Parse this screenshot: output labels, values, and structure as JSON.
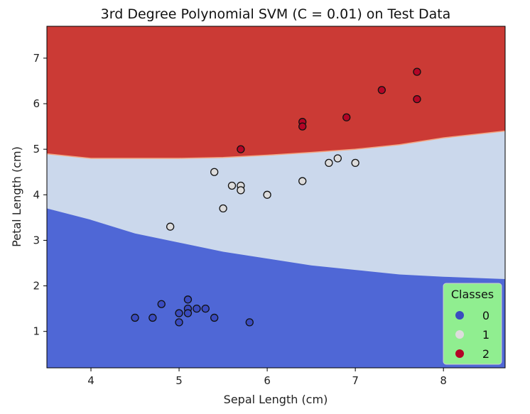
{
  "chart_data": {
    "type": "scatter",
    "title": "3rd Degree Polynomial SVM (C = 0.01) on Test Data",
    "xlabel": "Sepal Length (cm)",
    "ylabel": "Petal Length (cm)",
    "xlim": [
      3.5,
      8.7
    ],
    "ylim": [
      0.2,
      7.7
    ],
    "xticks": [
      4,
      5,
      6,
      7,
      8
    ],
    "yticks": [
      1,
      2,
      3,
      4,
      5,
      6,
      7
    ],
    "grid": false,
    "regions": [
      {
        "class": "0",
        "color": "#4f67d6"
      },
      {
        "class": "1",
        "color": "#cbd8ec"
      },
      {
        "class": "2",
        "color": "#cb3a35"
      }
    ],
    "boundaries": {
      "lower": {
        "x": [
          3.5,
          4.0,
          4.5,
          5.0,
          5.5,
          6.0,
          6.5,
          7.0,
          7.5,
          8.0,
          8.7
        ],
        "y": [
          3.7,
          3.45,
          3.15,
          2.95,
          2.75,
          2.6,
          2.45,
          2.35,
          2.25,
          2.2,
          2.15
        ]
      },
      "upper": {
        "x": [
          3.5,
          4.0,
          4.5,
          5.0,
          5.5,
          6.0,
          6.5,
          7.0,
          7.5,
          8.0,
          8.7
        ],
        "y": [
          4.9,
          4.8,
          4.8,
          4.8,
          4.82,
          4.87,
          4.93,
          5.0,
          5.1,
          5.25,
          5.4
        ]
      }
    },
    "series": [
      {
        "name": "0",
        "color": "#3b4cc0",
        "points": [
          [
            4.5,
            1.3
          ],
          [
            4.7,
            1.3
          ],
          [
            4.8,
            1.6
          ],
          [
            5.0,
            1.4
          ],
          [
            5.0,
            1.2
          ],
          [
            5.1,
            1.7
          ],
          [
            5.1,
            1.5
          ],
          [
            5.1,
            1.4
          ],
          [
            5.2,
            1.5
          ],
          [
            5.3,
            1.5
          ],
          [
            5.4,
            1.3
          ],
          [
            5.8,
            1.2
          ]
        ]
      },
      {
        "name": "1",
        "color": "#dddcdc",
        "points": [
          [
            4.9,
            3.3
          ],
          [
            5.4,
            4.5
          ],
          [
            5.5,
            3.7
          ],
          [
            5.6,
            4.2
          ],
          [
            5.7,
            4.2
          ],
          [
            5.7,
            4.1
          ],
          [
            6.0,
            4.0
          ],
          [
            6.4,
            4.3
          ],
          [
            6.7,
            4.7
          ],
          [
            6.8,
            4.8
          ],
          [
            7.0,
            4.7
          ]
        ]
      },
      {
        "name": "2",
        "color": "#b40426",
        "points": [
          [
            5.7,
            5.0
          ],
          [
            6.4,
            5.6
          ],
          [
            6.4,
            5.5
          ],
          [
            6.9,
            5.7
          ],
          [
            7.3,
            6.3
          ],
          [
            7.7,
            6.7
          ],
          [
            7.7,
            6.1
          ]
        ]
      }
    ],
    "legend": {
      "title": "Classes",
      "position": "lower-right",
      "background": "#90ee90",
      "entries": [
        {
          "label": "0",
          "color": "#3b4cc0"
        },
        {
          "label": "1",
          "color": "#dddcdc"
        },
        {
          "label": "2",
          "color": "#b40426"
        }
      ]
    }
  }
}
